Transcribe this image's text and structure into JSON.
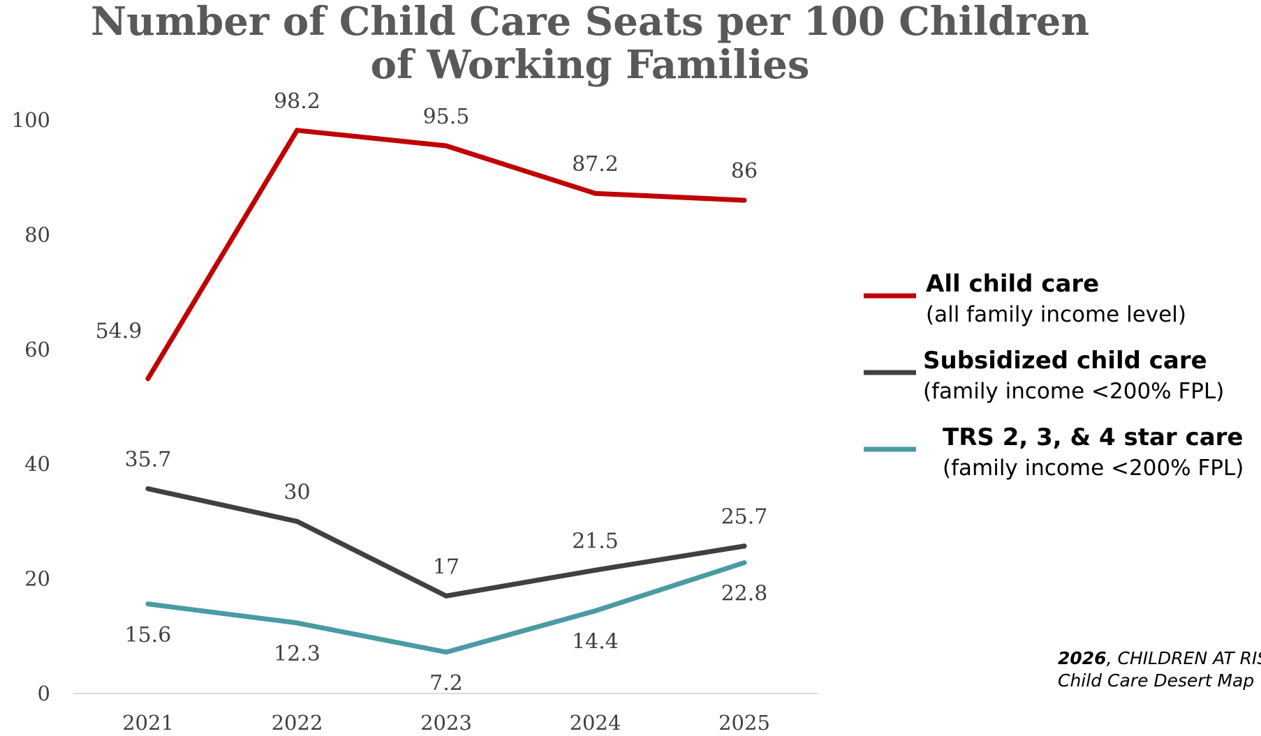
{
  "chart_data": {
    "type": "line",
    "title_lines": [
      "Number of Child Care Seats per 100 Children",
      "of Working Families"
    ],
    "categories": [
      "2021",
      "2022",
      "2023",
      "2024",
      "2025"
    ],
    "ylim": [
      0,
      100
    ],
    "yticks": [
      0,
      20,
      40,
      60,
      80,
      100
    ],
    "grid": false,
    "legend_position": "right",
    "series": [
      {
        "name": "All child care",
        "description": "(all family income level)",
        "color": "#c00000",
        "values": [
          54.9,
          98.2,
          95.5,
          87.2,
          86
        ],
        "labels": [
          "54.9",
          "98.2",
          "95.5",
          "87.2",
          "86"
        ],
        "label_side": [
          "above",
          "above",
          "above",
          "above",
          "above"
        ]
      },
      {
        "name": "Subsidized child care",
        "description": "(family income <200% FPL)",
        "color": "#404040",
        "values": [
          35.7,
          30,
          17,
          21.5,
          25.7
        ],
        "labels": [
          "35.7",
          "30",
          "17",
          "21.5",
          "25.7"
        ],
        "label_side": [
          "above",
          "above",
          "above",
          "above",
          "above"
        ]
      },
      {
        "name": "TRS 2, 3, & 4 star care",
        "description": "(family income <200% FPL)",
        "color": "#4a9ba3",
        "values": [
          15.6,
          12.3,
          7.2,
          14.4,
          22.8
        ],
        "labels": [
          "15.6",
          "12.3",
          "7.2",
          "14.4",
          "22.8"
        ],
        "label_side": [
          "below",
          "below",
          "below",
          "below",
          "below"
        ]
      }
    ],
    "source": {
      "year": "2026",
      "org": ", CHILDREN AT RISK",
      "line2": "Child Care Desert Map"
    }
  }
}
